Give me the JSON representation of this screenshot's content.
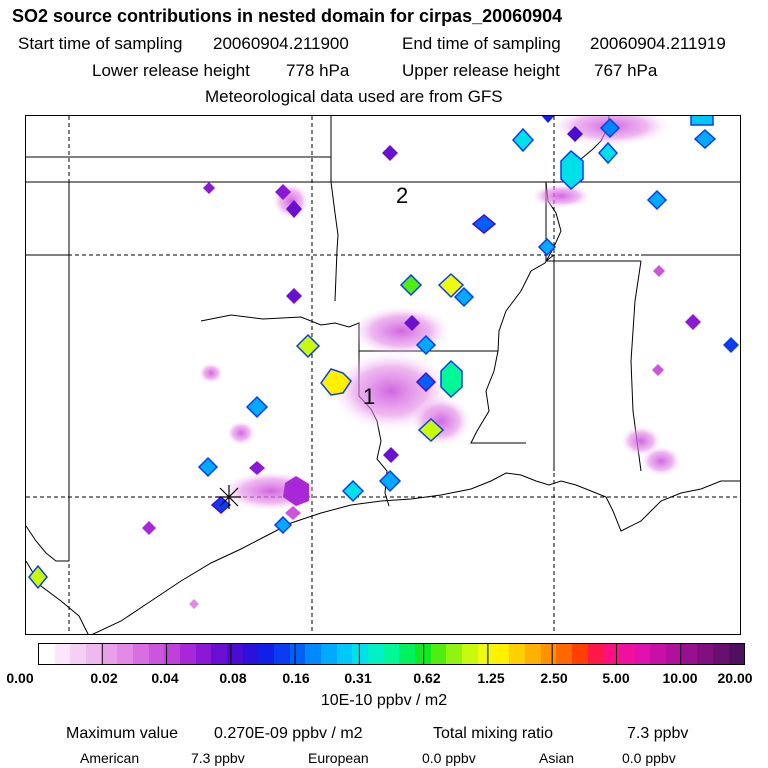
{
  "header": {
    "title": "SO2 source contributions in nested domain for cirpas_20060904",
    "start_label": "Start time of sampling",
    "start_value": "20060904.211900",
    "end_label": "End time of sampling",
    "end_value": "20060904.211919",
    "lower_label": "Lower release height",
    "lower_value": "778 hPa",
    "upper_label": "Upper release height",
    "upper_value": "767 hPa",
    "met_line": "Meteorological data used are from GFS"
  },
  "map": {
    "markers": [
      "1",
      "2"
    ],
    "release_symbol": "release-star-icon"
  },
  "colorbar": {
    "labels": [
      "0.00",
      "0.02",
      "0.04",
      "0.08",
      "0.16",
      "0.31",
      "0.62",
      "1.25",
      "2.50",
      "5.00",
      "10.00",
      "20.00"
    ],
    "colors": [
      "#ffffff",
      "#fbe6fb",
      "#f5d0f5",
      "#efb8ef",
      "#e9a0ea",
      "#e389e6",
      "#d86ee2",
      "#cc55de",
      "#c040dc",
      "#a828d8",
      "#8a18d4",
      "#6a10d2",
      "#4a0cd2",
      "#2c10dc",
      "#1020e6",
      "#0a3cf0",
      "#0060f8",
      "#0088ff",
      "#00aaff",
      "#00c8f8",
      "#00e0e8",
      "#00f0c8",
      "#00f898",
      "#00f060",
      "#10e820",
      "#50ee10",
      "#90f410",
      "#c8fa10",
      "#f0fa10",
      "#fff000",
      "#ffd000",
      "#ffb000",
      "#ff9000",
      "#ff6800",
      "#ff4000",
      "#ff1848",
      "#ff1080",
      "#f010a0",
      "#e010b0",
      "#c810a8",
      "#b0109c",
      "#981090",
      "#801080",
      "#681070",
      "#501060"
    ],
    "units": "10E-10 ppbv / m2"
  },
  "footer": {
    "max_label": "Maximum value",
    "max_value": "0.270E-09 ppbv / m2",
    "total_label": "Total mixing ratio",
    "total_value": "7.3 ppbv",
    "american_label": "American",
    "american_value": "7.3 ppbv",
    "european_label": "European",
    "european_value": "0.0 ppbv",
    "asian_label": "Asian",
    "asian_value": "0.0 ppbv"
  }
}
